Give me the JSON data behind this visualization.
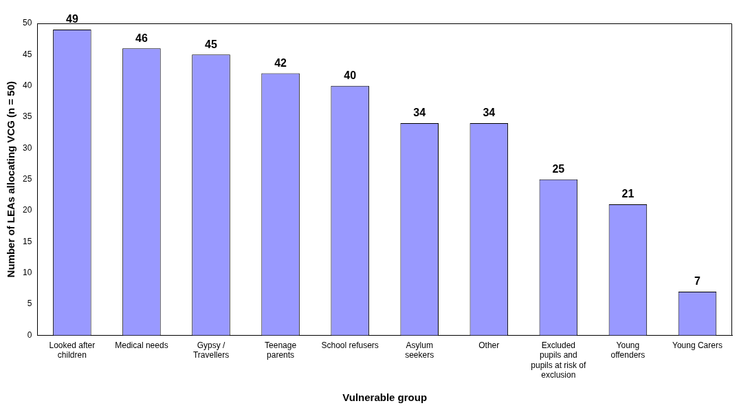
{
  "chart_data": {
    "type": "bar",
    "xlabel": "Vulnerable group",
    "ylabel": "Number of LEAs allocating VCG (n = 50)",
    "categories": [
      "Looked after children",
      "Medical needs",
      "Gypsy / Travellers",
      "Teenage parents",
      "School refusers",
      "Asylum seekers",
      "Other",
      "Excluded pupils and pupils at risk of exclusion",
      "Young offenders",
      "Young Carers"
    ],
    "values": [
      49,
      46,
      45,
      42,
      40,
      34,
      34,
      25,
      21,
      7
    ],
    "color": "#9999ff",
    "ylim": [
      0,
      50
    ],
    "yticks": [
      0,
      5,
      10,
      15,
      20,
      25,
      30,
      35,
      40,
      45,
      50
    ],
    "grid": false,
    "legend": false,
    "data_labels": true
  }
}
